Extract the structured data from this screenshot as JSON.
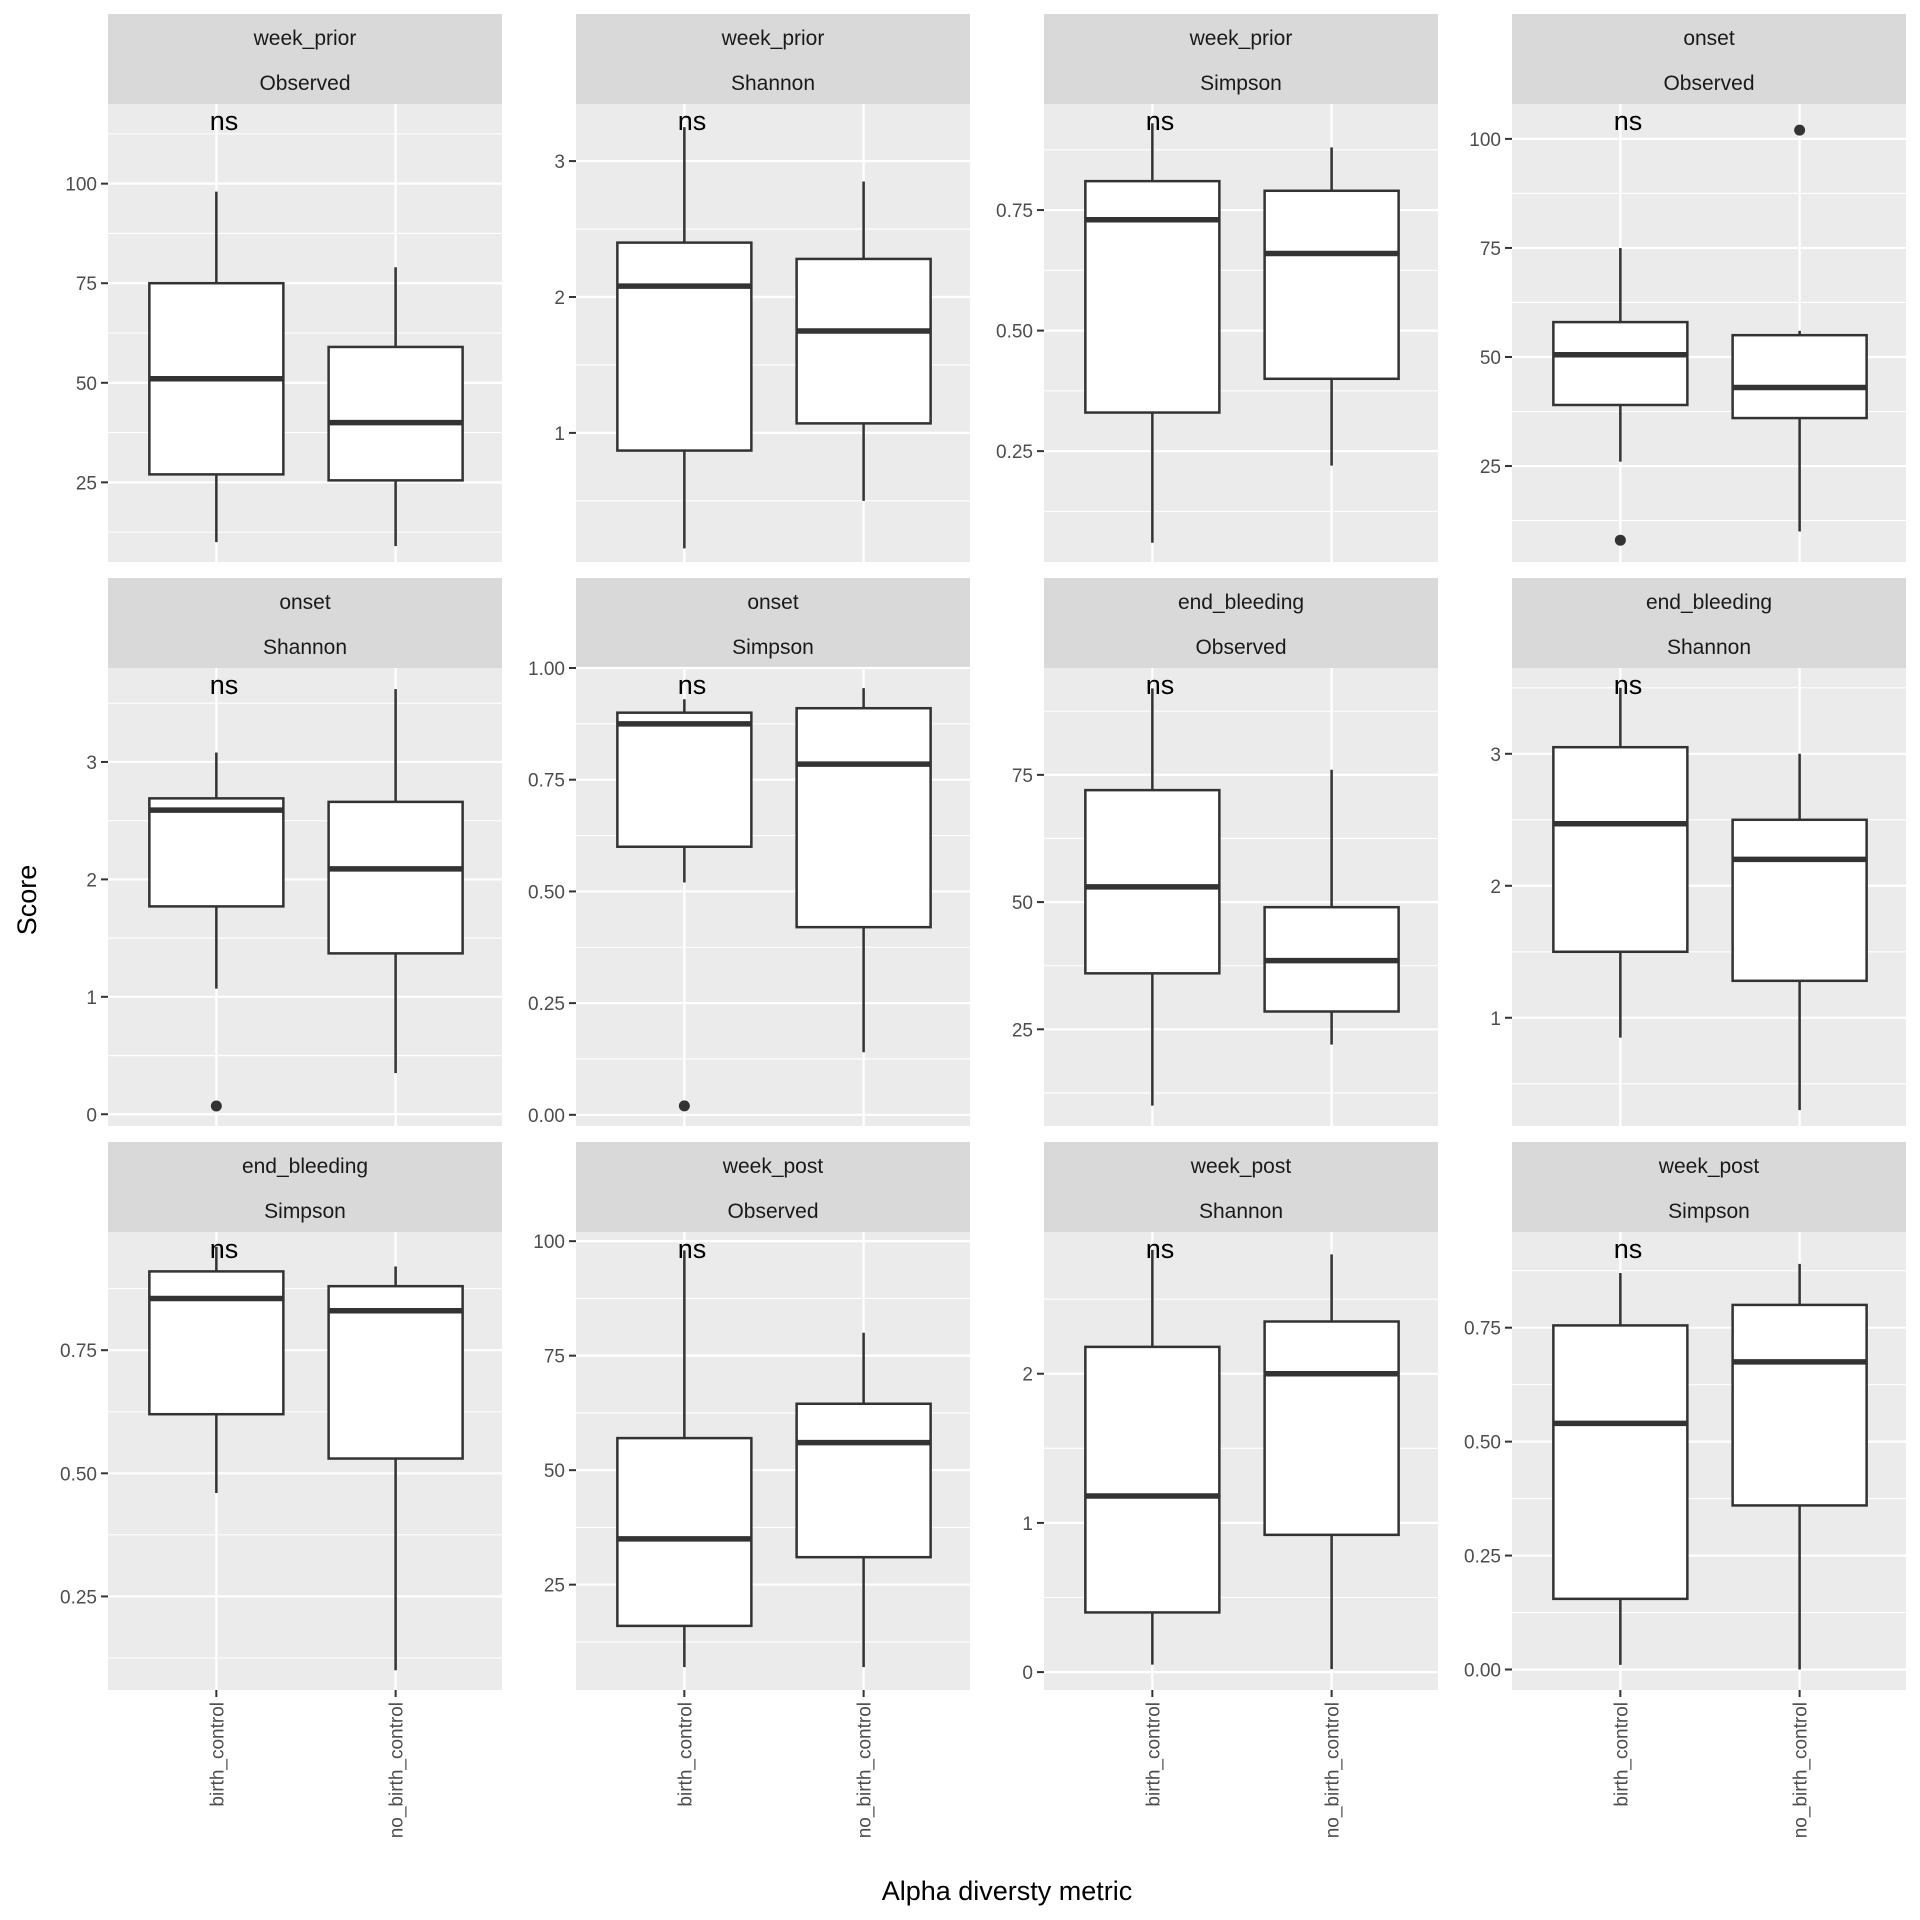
{
  "chart_data": {
    "type": "box",
    "xlabel": "Alpha diversty metric",
    "ylabel": "Score",
    "categories": [
      "birth_control",
      "no_birth_control"
    ],
    "significance_label": "ns",
    "grid": true,
    "panels": [
      {
        "strip_top": "week_prior",
        "strip_bottom": "Observed",
        "ylim": [
          5,
          120
        ],
        "yticks": [
          25,
          50,
          75,
          100
        ],
        "boxes": [
          {
            "group": "birth_control",
            "lower": 10,
            "q1": 27,
            "median": 51,
            "q3": 75,
            "upper": 98,
            "outliers": []
          },
          {
            "group": "no_birth_control",
            "lower": 9,
            "q1": 25.5,
            "median": 40,
            "q3": 59,
            "upper": 79,
            "outliers": []
          }
        ]
      },
      {
        "strip_top": "week_prior",
        "strip_bottom": "Shannon",
        "ylim": [
          0.05,
          3.42
        ],
        "yticks": [
          1,
          2,
          3
        ],
        "boxes": [
          {
            "group": "birth_control",
            "lower": 0.15,
            "q1": 0.87,
            "median": 2.08,
            "q3": 2.4,
            "upper": 3.25,
            "outliers": []
          },
          {
            "group": "no_birth_control",
            "lower": 0.5,
            "q1": 1.07,
            "median": 1.75,
            "q3": 2.28,
            "upper": 2.85,
            "outliers": []
          }
        ]
      },
      {
        "strip_top": "week_prior",
        "strip_bottom": "Simpson",
        "ylim": [
          0.02,
          0.97
        ],
        "yticks": [
          0.25,
          0.5,
          0.75
        ],
        "yticklabels": [
          "0.25",
          "0.50",
          "0.75"
        ],
        "boxes": [
          {
            "group": "birth_control",
            "lower": 0.06,
            "q1": 0.33,
            "median": 0.73,
            "q3": 0.81,
            "upper": 0.93,
            "outliers": []
          },
          {
            "group": "no_birth_control",
            "lower": 0.22,
            "q1": 0.4,
            "median": 0.66,
            "q3": 0.79,
            "upper": 0.88,
            "outliers": []
          }
        ]
      },
      {
        "strip_top": "onset",
        "strip_bottom": "Observed",
        "ylim": [
          3,
          108
        ],
        "yticks": [
          25,
          50,
          75,
          100
        ],
        "boxes": [
          {
            "group": "birth_control",
            "lower": 26,
            "q1": 39,
            "median": 50.5,
            "q3": 58,
            "upper": 75,
            "outliers": [
              8
            ]
          },
          {
            "group": "no_birth_control",
            "lower": 10,
            "q1": 36,
            "median": 43,
            "q3": 55,
            "upper": 56,
            "outliers": [
              102
            ]
          }
        ]
      },
      {
        "strip_top": "onset",
        "strip_bottom": "Shannon",
        "ylim": [
          -0.1,
          3.8
        ],
        "yticks": [
          0,
          1,
          2,
          3
        ],
        "boxes": [
          {
            "group": "birth_control",
            "lower": 1.07,
            "q1": 1.77,
            "median": 2.59,
            "q3": 2.69,
            "upper": 3.08,
            "outliers": [
              0.07
            ]
          },
          {
            "group": "no_birth_control",
            "lower": 0.35,
            "q1": 1.37,
            "median": 2.09,
            "q3": 2.66,
            "upper": 3.62,
            "outliers": []
          }
        ]
      },
      {
        "strip_top": "onset",
        "strip_bottom": "Simpson",
        "ylim": [
          -0.025,
          1.0
        ],
        "yticks": [
          0,
          0.25,
          0.5,
          0.75,
          1
        ],
        "yticklabels": [
          "0.00",
          "0.25",
          "0.50",
          "0.75",
          "1.00"
        ],
        "boxes": [
          {
            "group": "birth_control",
            "lower": 0.52,
            "q1": 0.6,
            "median": 0.875,
            "q3": 0.9,
            "upper": 0.93,
            "outliers": [
              0.02
            ]
          },
          {
            "group": "no_birth_control",
            "lower": 0.14,
            "q1": 0.42,
            "median": 0.785,
            "q3": 0.91,
            "upper": 0.955,
            "outliers": []
          }
        ]
      },
      {
        "strip_top": "end_bleeding",
        "strip_bottom": "Observed",
        "ylim": [
          6,
          96
        ],
        "yticks": [
          25,
          50,
          75
        ],
        "boxes": [
          {
            "group": "birth_control",
            "lower": 10,
            "q1": 36,
            "median": 53,
            "q3": 72,
            "upper": 92,
            "outliers": []
          },
          {
            "group": "no_birth_control",
            "lower": 22,
            "q1": 28.5,
            "median": 38.5,
            "q3": 49,
            "upper": 76,
            "outliers": []
          }
        ]
      },
      {
        "strip_top": "end_bleeding",
        "strip_bottom": "Shannon",
        "ylim": [
          0.18,
          3.65
        ],
        "yticks": [
          1,
          2,
          3
        ],
        "boxes": [
          {
            "group": "birth_control",
            "lower": 0.85,
            "q1": 1.5,
            "median": 2.47,
            "q3": 3.05,
            "upper": 3.5,
            "outliers": []
          },
          {
            "group": "no_birth_control",
            "lower": 0.3,
            "q1": 1.28,
            "median": 2.2,
            "q3": 2.5,
            "upper": 3.0,
            "outliers": []
          }
        ]
      },
      {
        "strip_top": "end_bleeding",
        "strip_bottom": "Simpson",
        "ylim": [
          0.06,
          0.99
        ],
        "yticks": [
          0.25,
          0.5,
          0.75
        ],
        "yticklabels": [
          "0.25",
          "0.50",
          "0.75"
        ],
        "boxes": [
          {
            "group": "birth_control",
            "lower": 0.46,
            "q1": 0.62,
            "median": 0.855,
            "q3": 0.91,
            "upper": 0.96,
            "outliers": []
          },
          {
            "group": "no_birth_control",
            "lower": 0.1,
            "q1": 0.53,
            "median": 0.83,
            "q3": 0.88,
            "upper": 0.92,
            "outliers": []
          }
        ]
      },
      {
        "strip_top": "week_post",
        "strip_bottom": "Observed",
        "ylim": [
          2,
          102
        ],
        "yticks": [
          25,
          50,
          75,
          100
        ],
        "boxes": [
          {
            "group": "birth_control",
            "lower": 7,
            "q1": 16,
            "median": 35,
            "q3": 57,
            "upper": 98,
            "outliers": []
          },
          {
            "group": "no_birth_control",
            "lower": 7,
            "q1": 31,
            "median": 56,
            "q3": 64.5,
            "upper": 80,
            "outliers": []
          }
        ]
      },
      {
        "strip_top": "week_post",
        "strip_bottom": "Shannon",
        "ylim": [
          -0.12,
          2.95
        ],
        "yticks": [
          0,
          1,
          2
        ],
        "boxes": [
          {
            "group": "birth_control",
            "lower": 0.05,
            "q1": 0.4,
            "median": 1.18,
            "q3": 2.18,
            "upper": 2.83,
            "outliers": []
          },
          {
            "group": "no_birth_control",
            "lower": 0.02,
            "q1": 0.92,
            "median": 2.0,
            "q3": 2.35,
            "upper": 2.8,
            "outliers": []
          }
        ]
      },
      {
        "strip_top": "week_post",
        "strip_bottom": "Simpson",
        "ylim": [
          -0.045,
          0.96
        ],
        "yticks": [
          0,
          0.25,
          0.5,
          0.75
        ],
        "yticklabels": [
          "0.00",
          "0.25",
          "0.50",
          "0.75"
        ],
        "boxes": [
          {
            "group": "birth_control",
            "lower": 0.01,
            "q1": 0.155,
            "median": 0.54,
            "q3": 0.755,
            "upper": 0.87,
            "outliers": []
          },
          {
            "group": "no_birth_control",
            "lower": 0.0,
            "q1": 0.36,
            "median": 0.675,
            "q3": 0.8,
            "upper": 0.89,
            "outliers": []
          }
        ]
      }
    ]
  }
}
